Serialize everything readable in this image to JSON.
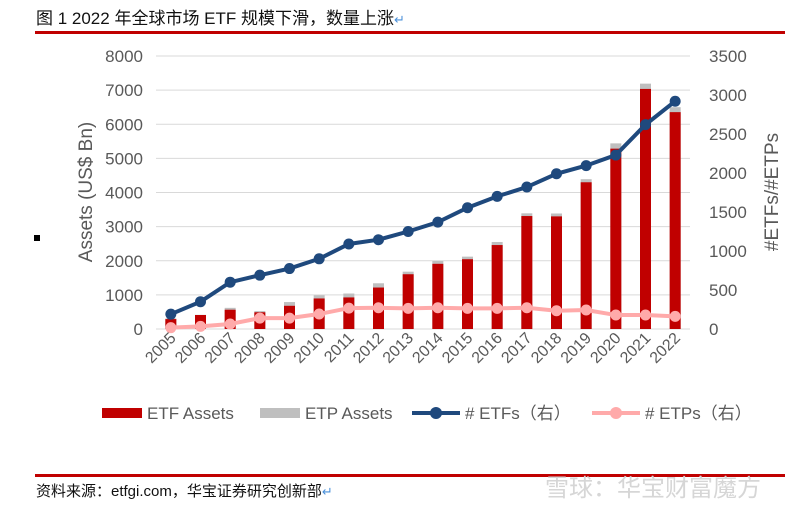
{
  "header": {
    "title": "图 1  2022 年全球市场 ETF 规模下滑，数量上涨",
    "return_mark": "↵"
  },
  "footer": {
    "source": "资料来源：etfgi.com，华宝证券研究创新部",
    "return_mark": "↵",
    "watermark": "雪球：华宝财富魔方"
  },
  "colors": {
    "etf_assets": "#c00000",
    "etp_assets": "#bfbfbf",
    "etfs": "#1f497d",
    "etps": "#ffaaaa",
    "rule": "#c00000"
  },
  "chart_data": {
    "type": "bar+line",
    "categories": [
      "2005",
      "2006",
      "2007",
      "2008",
      "2009",
      "2010",
      "2011",
      "2012",
      "2013",
      "2014",
      "2015",
      "2016",
      "2017",
      "2018",
      "2019",
      "2020",
      "2021",
      "2022"
    ],
    "ylabel": "Assets (US$ Bn)",
    "y2label": "#ETFs/#ETPs",
    "ylim": [
      0,
      8000
    ],
    "y2lim": [
      0,
      3500
    ],
    "yticks": [
      "0",
      "1000",
      "2000",
      "3000",
      "4000",
      "5000",
      "6000",
      "7000",
      "8000"
    ],
    "y2ticks": [
      "0",
      "500",
      "1000",
      "1500",
      "2000",
      "2500",
      "3000",
      "3500"
    ],
    "grid": true,
    "legend_position": "bottom",
    "series": [
      {
        "name": "ETF Assets",
        "type": "bar",
        "axis": "left",
        "values": [
          290,
          410,
          565,
          490,
          680,
          895,
          925,
          1215,
          1605,
          1910,
          2045,
          2460,
          3310,
          3300,
          4300,
          5285,
          7035,
          6355
        ]
      },
      {
        "name": "ETP Assets",
        "type": "bar-stacked-total",
        "axis": "left",
        "values": [
          310,
          415,
          620,
          525,
          790,
          990,
          1040,
          1340,
          1680,
          1995,
          2120,
          2550,
          3390,
          3385,
          4390,
          5440,
          7190,
          6500
        ]
      },
      {
        "name": "# ETFs（右）",
        "type": "line",
        "axis": "right",
        "values": [
          190,
          350,
          600,
          690,
          775,
          900,
          1090,
          1145,
          1250,
          1370,
          1555,
          1700,
          1820,
          1990,
          2095,
          2230,
          2620,
          2920
        ]
      },
      {
        "name": "# ETPs（右）",
        "type": "line",
        "axis": "right",
        "values": [
          17,
          34,
          64,
          140,
          140,
          192,
          268,
          272,
          264,
          272,
          264,
          264,
          272,
          234,
          243,
          179,
          179,
          162
        ]
      }
    ]
  }
}
